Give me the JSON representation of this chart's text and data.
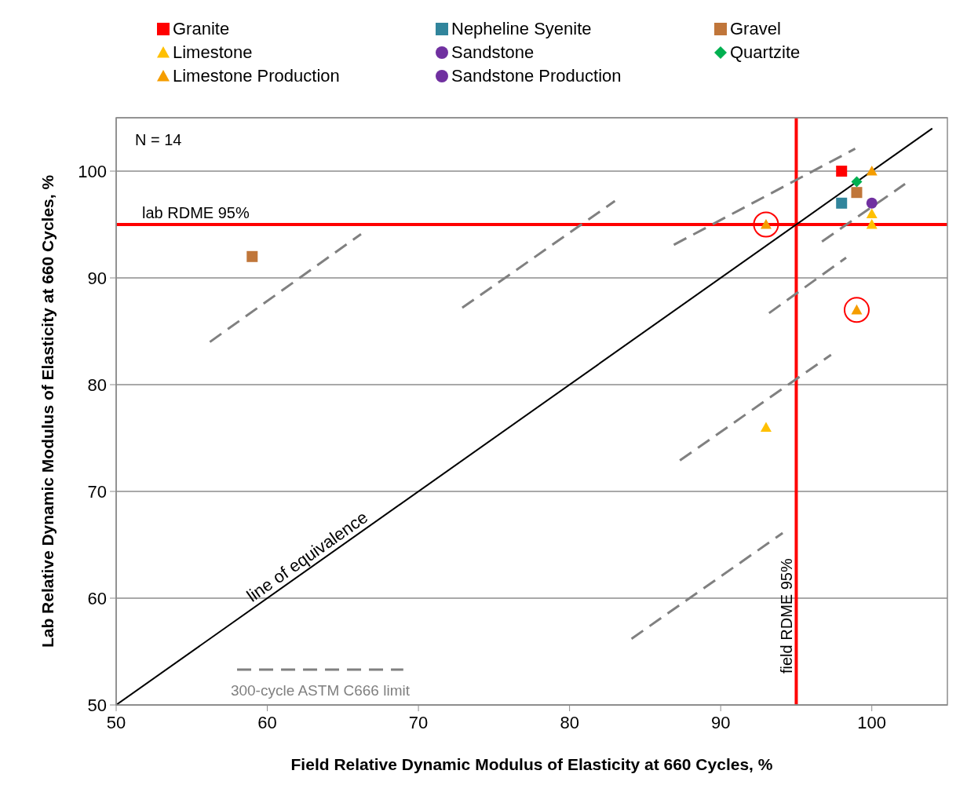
{
  "chart_data": {
    "type": "scatter",
    "xlabel": "Field Relative Dynamic Modulus of Elasticity at 660 Cycles, %",
    "ylabel": "Lab Relative Dynamic Modulus of Elasticity at 660 Cycles, %",
    "xlim": [
      50,
      105
    ],
    "xticks": [
      50,
      60,
      70,
      80,
      90,
      100
    ],
    "ylim": [
      50,
      105
    ],
    "yticks": [
      50,
      60,
      70,
      80,
      90,
      100
    ],
    "grid": "y",
    "legend": "top",
    "series": [
      {
        "name": "Granite",
        "color": "#ff0000",
        "marker": "square",
        "x": [
          98
        ],
        "values": [
          100
        ]
      },
      {
        "name": "Nepheline Syenite",
        "color": "#31859c",
        "marker": "square",
        "x": [
          98
        ],
        "values": [
          97
        ]
      },
      {
        "name": "Gravel",
        "color": "#c0763a",
        "marker": "square",
        "x": [
          99,
          59
        ],
        "values": [
          98,
          92
        ]
      },
      {
        "name": "Limestone",
        "color": "#ffc000",
        "marker": "triangle",
        "x": [
          100,
          100,
          93
        ],
        "values": [
          96,
          95,
          76
        ]
      },
      {
        "name": "Sandstone",
        "color": "#7030a0",
        "marker": "circle",
        "x": [
          100
        ],
        "values": [
          97
        ]
      },
      {
        "name": "Quartzite",
        "color": "#00b050",
        "marker": "diamond",
        "x": [
          99
        ],
        "values": [
          99
        ]
      },
      {
        "name": "Limestone Production",
        "color": "#f59d00",
        "marker": "triangle",
        "x": [
          100,
          93,
          99
        ],
        "values": [
          100,
          95,
          87
        ]
      },
      {
        "name": "Sandstone Production",
        "color": "#7030a0",
        "marker": "circle"
      },
      {
        "type": "line",
        "color": "#000000",
        "marker": "none",
        "line_style": "solid",
        "x": [
          50,
          104
        ],
        "values": [
          50,
          104
        ]
      },
      {
        "type": "line",
        "name": "300-cycle ASTM C666 limit",
        "color": "#808080",
        "marker": "none",
        "line_style": "dashed",
        "x": [
          56.2,
          66.2,
          null,
          72.9,
          83.0,
          null,
          86.9,
          98.9,
          null,
          96.7,
          102.2,
          null,
          93.2,
          98.3,
          null,
          87.3,
          97.3,
          null,
          84.1,
          94.1
        ],
        "values": [
          84.0,
          94.1,
          null,
          87.2,
          97.2,
          null,
          93.1,
          102.1,
          null,
          93.4,
          98.8,
          null,
          86.7,
          91.9,
          null,
          72.9,
          82.8,
          null,
          56.2,
          66.1
        ]
      },
      {
        "color": "#ff0000",
        "marker": "circle",
        "x": [
          93,
          99
        ],
        "values": [
          95,
          87
        ]
      }
    ],
    "ref_lines": [
      {
        "axis": "y",
        "value": 95,
        "label": "lab RDME 95%",
        "color": "#ff0000",
        "line_style": "solid"
      },
      {
        "axis": "x",
        "value": 95,
        "label": "field RDME 95%",
        "color": "#ff0000",
        "line_style": "solid"
      }
    ],
    "annotations": [
      "N = 14",
      {
        "text": "line of equivalence",
        "x": 59,
        "y": 59
      }
    ]
  }
}
